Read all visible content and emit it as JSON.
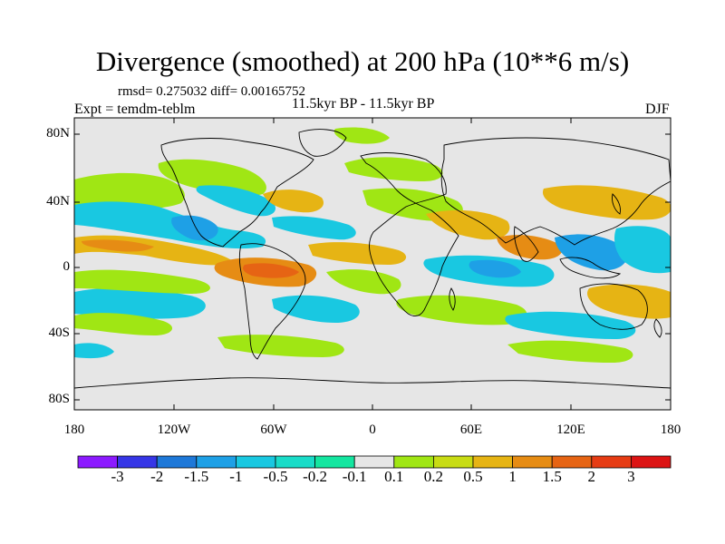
{
  "header": {
    "title": "Divergence (smoothed) at 200 hPa (10**6 m/s)",
    "stats": "rmsd= 0.275032 diff= 0.00165752",
    "experiment": "Expt = temdm-teblm",
    "period": "11.5kyr BP - 11.5kyr BP",
    "season": "DJF"
  },
  "axes": {
    "lat_labels": [
      "80N",
      "40N",
      "0",
      "40S",
      "80S"
    ],
    "lon_labels": [
      "180",
      "120W",
      "60W",
      "0",
      "60E",
      "120E",
      "180"
    ]
  },
  "colorbar": {
    "labels": [
      "-3",
      "-2",
      "-1.5",
      "-1",
      "-0.5",
      "-0.2",
      "-0.1",
      "0.1",
      "0.2",
      "0.5",
      "1",
      "1.5",
      "2",
      "3"
    ],
    "colors": [
      "#8c1aff",
      "#3636e6",
      "#1e78d8",
      "#1ea0e6",
      "#19c8e1",
      "#19dcc8",
      "#14e6a0",
      "#e6e6e6",
      "#a0e614",
      "#c8dc14",
      "#e6b414",
      "#e68c14",
      "#e66414",
      "#e63c14",
      "#dc1414"
    ]
  },
  "fill_colors": {
    "ocean_bg": "#e6e6e6",
    "neg_strong": "#1ea0e6",
    "neg_mid": "#19c8e1",
    "neg_weak": "#14e6a0",
    "pos_weak": "#a0e614",
    "pos_mid": "#e6b414",
    "pos_strong": "#e68c14",
    "pos_max": "#e66414"
  }
}
